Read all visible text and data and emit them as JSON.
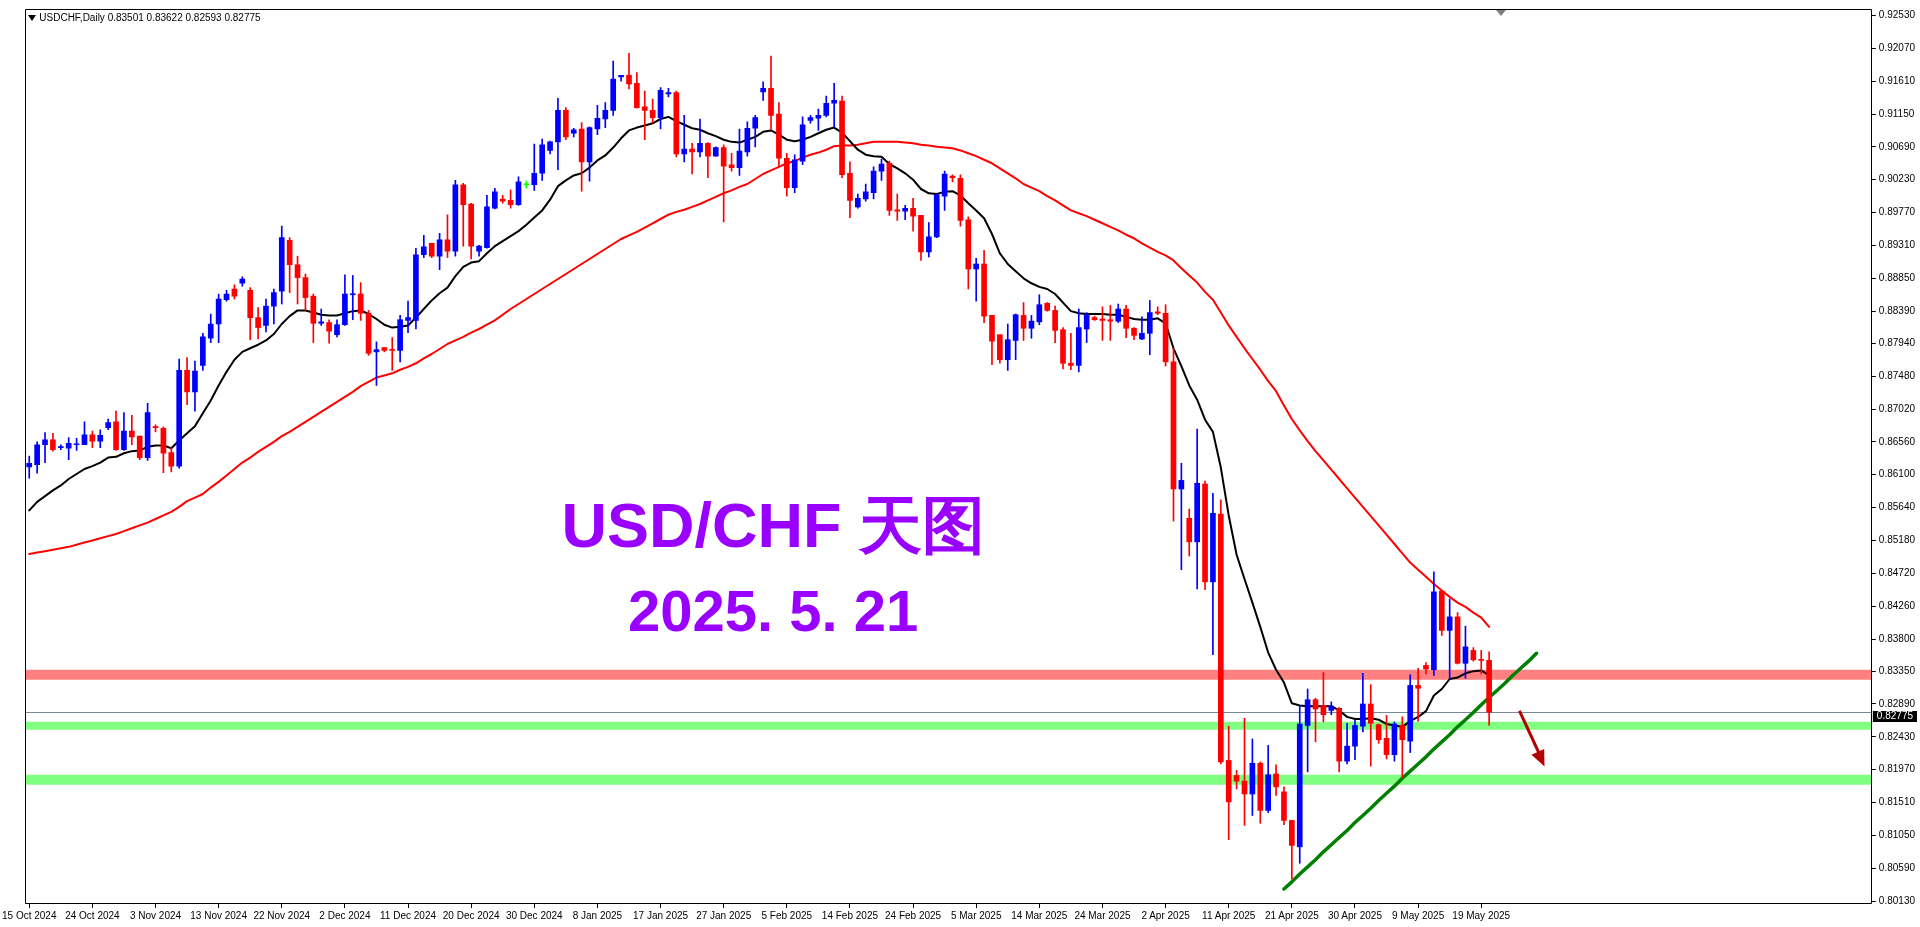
{
  "chart_data": {
    "type": "candlestick",
    "title": "USD/CHF 天图",
    "subtitle": "2025. 5. 21",
    "annotations": [
      "USDCHF,Daily 0.83501 0.83622 0.82593 0.82775"
    ],
    "categories": [
      "15 Oct 2024",
      null,
      null,
      null,
      null,
      null,
      null,
      null,
      "24 Oct 2024",
      null,
      null,
      null,
      null,
      null,
      null,
      null,
      "3 Nov 2024",
      null,
      null,
      null,
      null,
      null,
      null,
      null,
      "13 Nov 2024",
      null,
      null,
      null,
      null,
      null,
      null,
      null,
      "22 Nov 2024",
      null,
      null,
      null,
      null,
      null,
      null,
      null,
      "2 Dec 2024",
      null,
      null,
      null,
      null,
      null,
      null,
      null,
      "11 Dec 2024",
      null,
      null,
      null,
      null,
      null,
      null,
      null,
      "20 Dec 2024",
      null,
      null,
      null,
      null,
      null,
      null,
      null,
      "30 Dec 2024",
      null,
      null,
      null,
      null,
      null,
      null,
      null,
      "8 Jan 2025",
      null,
      null,
      null,
      null,
      null,
      null,
      null,
      "17 Jan 2025",
      null,
      null,
      null,
      null,
      null,
      null,
      null,
      "27 Jan 2025",
      null,
      null,
      null,
      null,
      null,
      null,
      null,
      "5 Feb 2025",
      null,
      null,
      null,
      null,
      null,
      null,
      null,
      "14 Feb 2025",
      null,
      null,
      null,
      null,
      null,
      null,
      null,
      "24 Feb 2025",
      null,
      null,
      null,
      null,
      null,
      null,
      null,
      "5 Mar 2025",
      null,
      null,
      null,
      null,
      null,
      null,
      null,
      "14 Mar 2025",
      null,
      null,
      null,
      null,
      null,
      null,
      null,
      "24 Mar 2025",
      null,
      null,
      null,
      null,
      null,
      null,
      null,
      "2 Apr 2025",
      null,
      null,
      null,
      null,
      null,
      null,
      null,
      "11 Apr 2025",
      null,
      null,
      null,
      null,
      null,
      null,
      null,
      "21 Apr 2025",
      null,
      null,
      null,
      null,
      null,
      null,
      null,
      "30 Apr 2025",
      null,
      null,
      null,
      null,
      null,
      null,
      null,
      "9 May 2025",
      null,
      null,
      null,
      null,
      null,
      null,
      null,
      "19 May 2025",
      null,
      null,
      null,
      null,
      null,
      null,
      null,
      null,
      null,
      null,
      null,
      null,
      null,
      null,
      null,
      null,
      null,
      null,
      null,
      null,
      null,
      null,
      null,
      null,
      null,
      null,
      null,
      null,
      null,
      null,
      null,
      null,
      null,
      null,
      null,
      null,
      null,
      null,
      null,
      null,
      null,
      null,
      null,
      null,
      null,
      null,
      null,
      null,
      null
    ],
    "ohlc": [
      [
        0.8621,
        0.8636,
        0.8605,
        0.8626
      ],
      [
        0.8624,
        0.8656,
        0.8612,
        0.8652
      ],
      [
        0.8652,
        0.8669,
        0.8627,
        0.8659
      ],
      [
        0.8659,
        0.8668,
        0.8643,
        0.8645
      ],
      [
        0.8648,
        0.8652,
        0.8645,
        0.8649
      ],
      [
        0.8647,
        0.8662,
        0.8631,
        0.8654
      ],
      [
        0.8652,
        0.8661,
        0.8644,
        0.8653
      ],
      [
        0.8652,
        0.8684,
        0.8652,
        0.8666
      ],
      [
        0.8666,
        0.8671,
        0.8648,
        0.8657
      ],
      [
        0.8657,
        0.8673,
        0.8648,
        0.8665
      ],
      [
        0.8676,
        0.8688,
        0.8673,
        0.8683
      ],
      [
        0.8684,
        0.8699,
        0.8644,
        0.8645
      ],
      [
        0.8645,
        0.8697,
        0.8644,
        0.8671
      ],
      [
        0.8671,
        0.8693,
        0.8652,
        0.8663
      ],
      [
        0.8664,
        0.8664,
        0.8631,
        0.8634
      ],
      [
        0.8634,
        0.871,
        0.863,
        0.8697
      ],
      [
        0.8677,
        0.868,
        0.867,
        0.8676
      ],
      [
        0.8675,
        0.8677,
        0.8613,
        0.864
      ],
      [
        0.8641,
        0.8648,
        0.8614,
        0.8622
      ],
      [
        0.8622,
        0.8772,
        0.8619,
        0.8756
      ],
      [
        0.8756,
        0.8774,
        0.8708,
        0.8726
      ],
      [
        0.8726,
        0.8769,
        0.8699,
        0.8755
      ],
      [
        0.8763,
        0.8808,
        0.8756,
        0.8803
      ],
      [
        0.8801,
        0.8835,
        0.8795,
        0.8821
      ],
      [
        0.8821,
        0.8863,
        0.8795,
        0.8856
      ],
      [
        0.8855,
        0.8868,
        0.8853,
        0.8863
      ],
      [
        0.887,
        0.8876,
        0.8856,
        0.886
      ],
      [
        0.8878,
        0.8887,
        0.8874,
        0.8884
      ],
      [
        0.8868,
        0.8872,
        0.8799,
        0.883
      ],
      [
        0.883,
        0.8844,
        0.88,
        0.8816
      ],
      [
        0.8819,
        0.8856,
        0.881,
        0.8846
      ],
      [
        0.8846,
        0.887,
        0.8821,
        0.8865
      ],
      [
        0.8867,
        0.8958,
        0.8849,
        0.8942
      ],
      [
        0.8938,
        0.8942,
        0.8865,
        0.8904
      ],
      [
        0.8904,
        0.8916,
        0.8849,
        0.8886
      ],
      [
        0.8886,
        0.8891,
        0.884,
        0.8858
      ],
      [
        0.886,
        0.8863,
        0.8795,
        0.8822
      ],
      [
        0.8822,
        0.8842,
        0.8819,
        0.8824
      ],
      [
        0.8823,
        0.8827,
        0.8794,
        0.8811
      ],
      [
        0.8806,
        0.8827,
        0.8803,
        0.882
      ],
      [
        0.882,
        0.889,
        0.8819,
        0.8863
      ],
      [
        0.8862,
        0.8889,
        0.8827,
        0.8863
      ],
      [
        0.8863,
        0.8879,
        0.8826,
        0.8836
      ],
      [
        0.8836,
        0.884,
        0.8777,
        0.878
      ],
      [
        0.8782,
        0.8796,
        0.8735,
        0.8785
      ],
      [
        0.8788,
        0.8788,
        0.8782,
        0.8784
      ],
      [
        0.8785,
        0.8802,
        0.8756,
        0.8784
      ],
      [
        0.8784,
        0.8833,
        0.8768,
        0.8827
      ],
      [
        0.8826,
        0.8853,
        0.8809,
        0.883
      ],
      [
        0.8826,
        0.8927,
        0.8814,
        0.8918
      ],
      [
        0.8918,
        0.8945,
        0.8914,
        0.8929
      ],
      [
        0.8934,
        0.8934,
        0.8914,
        0.8916
      ],
      [
        0.8916,
        0.8948,
        0.8897,
        0.8939
      ],
      [
        0.8939,
        0.8974,
        0.8914,
        0.8923
      ],
      [
        0.8923,
        0.9022,
        0.8916,
        0.9016
      ],
      [
        0.9016,
        0.9018,
        0.893,
        0.8988
      ],
      [
        0.8989,
        0.899,
        0.8912,
        0.893
      ],
      [
        0.8923,
        0.8931,
        0.8916,
        0.893
      ],
      [
        0.8928,
        0.9001,
        0.8927,
        0.8985
      ],
      [
        0.8983,
        0.9011,
        0.8982,
        0.9006
      ],
      [
        0.8996,
        0.9001,
        0.899,
        0.8993
      ],
      [
        0.8994,
        0.9009,
        0.8983,
        0.8988
      ],
      [
        0.8988,
        0.9027,
        0.8987,
        0.902
      ],
      [
        0.9016,
        0.9021,
        0.9011,
        0.9016
      ],
      [
        0.9016,
        0.9073,
        0.9008,
        0.9032
      ],
      [
        0.9032,
        0.908,
        0.9022,
        0.9072
      ],
      [
        0.9064,
        0.9077,
        0.9059,
        0.9076
      ],
      [
        0.9076,
        0.9137,
        0.9037,
        0.912
      ],
      [
        0.912,
        0.9124,
        0.9079,
        0.9083
      ],
      [
        0.9088,
        0.9095,
        0.9083,
        0.9093
      ],
      [
        0.9094,
        0.9103,
        0.9007,
        0.9048
      ],
      [
        0.9048,
        0.9097,
        0.9021,
        0.9096
      ],
      [
        0.9094,
        0.9127,
        0.9086,
        0.9109
      ],
      [
        0.9108,
        0.9131,
        0.9096,
        0.912
      ],
      [
        0.912,
        0.9189,
        0.9113,
        0.9164
      ],
      [
        0.9167,
        0.9169,
        0.9161,
        0.9169
      ],
      [
        0.9169,
        0.92,
        0.915,
        0.9157
      ],
      [
        0.9158,
        0.9173,
        0.9123,
        0.9124
      ],
      [
        0.9125,
        0.9147,
        0.9079,
        0.912
      ],
      [
        0.912,
        0.9136,
        0.9102,
        0.911
      ],
      [
        0.911,
        0.9152,
        0.9094,
        0.9148
      ],
      [
        0.9143,
        0.9151,
        0.9139,
        0.9145
      ],
      [
        0.9145,
        0.9147,
        0.9055,
        0.9059
      ],
      [
        0.9059,
        0.9113,
        0.9048,
        0.9066
      ],
      [
        0.9066,
        0.9074,
        0.9031,
        0.9062
      ],
      [
        0.9062,
        0.9108,
        0.9055,
        0.9074
      ],
      [
        0.9074,
        0.9075,
        0.9026,
        0.9056
      ],
      [
        0.9056,
        0.9069,
        0.9056,
        0.9068
      ],
      [
        0.9068,
        0.9072,
        0.8964,
        0.9042
      ],
      [
        0.9044,
        0.906,
        0.9035,
        0.904
      ],
      [
        0.904,
        0.9094,
        0.9029,
        0.9063
      ],
      [
        0.9062,
        0.9104,
        0.9056,
        0.9095
      ],
      [
        0.9095,
        0.9113,
        0.9069,
        0.911
      ],
      [
        0.9146,
        0.916,
        0.9134,
        0.9151
      ],
      [
        0.9151,
        0.9196,
        0.9093,
        0.9113
      ],
      [
        0.9115,
        0.9131,
        0.9042,
        0.9053
      ],
      [
        0.9053,
        0.906,
        0.9,
        0.9012
      ],
      [
        0.9012,
        0.9058,
        0.9005,
        0.9051
      ],
      [
        0.9049,
        0.9111,
        0.9044,
        0.91
      ],
      [
        0.9106,
        0.9113,
        0.9102,
        0.911
      ],
      [
        0.9109,
        0.9122,
        0.9092,
        0.9113
      ],
      [
        0.9113,
        0.914,
        0.9111,
        0.913
      ],
      [
        0.913,
        0.9158,
        0.9097,
        0.9134
      ],
      [
        0.9133,
        0.914,
        0.9026,
        0.903
      ],
      [
        0.9032,
        0.9048,
        0.897,
        0.8994
      ],
      [
        0.8985,
        0.9003,
        0.8983,
        0.8997
      ],
      [
        0.8996,
        0.9017,
        0.8993,
        0.9006
      ],
      [
        0.9005,
        0.9041,
        0.8996,
        0.9035
      ],
      [
        0.9035,
        0.9052,
        0.9022,
        0.9045
      ],
      [
        0.9046,
        0.9049,
        0.8973,
        0.898
      ],
      [
        0.8981,
        0.9003,
        0.8966,
        0.8979
      ],
      [
        0.8979,
        0.8987,
        0.8967,
        0.8983
      ],
      [
        0.8983,
        0.8997,
        0.8951,
        0.8972
      ],
      [
        0.8973,
        0.8973,
        0.891,
        0.8922
      ],
      [
        0.8922,
        0.8963,
        0.8915,
        0.8943
      ],
      [
        0.8943,
        0.9003,
        0.8942,
        0.9002
      ],
      [
        0.9,
        0.9035,
        0.898,
        0.9031
      ],
      [
        0.9028,
        0.903,
        0.902,
        0.9026
      ],
      [
        0.9025,
        0.903,
        0.8958,
        0.8966
      ],
      [
        0.8967,
        0.8971,
        0.887,
        0.8898
      ],
      [
        0.8898,
        0.8913,
        0.8853,
        0.8905
      ],
      [
        0.8905,
        0.8924,
        0.8823,
        0.8832
      ],
      [
        0.8833,
        0.8833,
        0.8764,
        0.8797
      ],
      [
        0.8806,
        0.8806,
        0.8766,
        0.8771
      ],
      [
        0.8771,
        0.8821,
        0.8756,
        0.8799
      ],
      [
        0.8798,
        0.8835,
        0.8771,
        0.8834
      ],
      [
        0.8833,
        0.8851,
        0.8798,
        0.8815
      ],
      [
        0.8815,
        0.8833,
        0.8801,
        0.8825
      ],
      [
        0.8824,
        0.8862,
        0.882,
        0.8848
      ],
      [
        0.885,
        0.8851,
        0.8839,
        0.884
      ],
      [
        0.884,
        0.8846,
        0.8795,
        0.8812
      ],
      [
        0.8813,
        0.8816,
        0.8758,
        0.8766
      ],
      [
        0.8766,
        0.8808,
        0.8757,
        0.8763
      ],
      [
        0.8763,
        0.8842,
        0.8754,
        0.8816
      ],
      [
        0.8814,
        0.8837,
        0.8795,
        0.8834
      ],
      [
        0.883,
        0.8832,
        0.8826,
        0.8827
      ],
      [
        0.8828,
        0.8845,
        0.8798,
        0.8826
      ],
      [
        0.8827,
        0.8847,
        0.8798,
        0.8825
      ],
      [
        0.8825,
        0.8849,
        0.8823,
        0.8842
      ],
      [
        0.8842,
        0.8847,
        0.8802,
        0.8815
      ],
      [
        0.8815,
        0.8816,
        0.8799,
        0.8805
      ],
      [
        0.88,
        0.8831,
        0.8799,
        0.8808
      ],
      [
        0.8808,
        0.8854,
        0.8778,
        0.8837
      ],
      [
        0.8838,
        0.8845,
        0.8834,
        0.8836
      ],
      [
        0.8836,
        0.8848,
        0.8762,
        0.8768
      ],
      [
        0.8768,
        0.8787,
        0.8545,
        0.859
      ],
      [
        0.859,
        0.8626,
        0.8477,
        0.8602
      ],
      [
        0.8549,
        0.8562,
        0.8496,
        0.8516
      ],
      [
        0.8516,
        0.8674,
        0.845,
        0.8598
      ],
      [
        0.8597,
        0.8601,
        0.8449,
        0.846
      ],
      [
        0.846,
        0.8584,
        0.8358,
        0.8556
      ],
      [
        0.8555,
        0.8575,
        0.8205,
        0.8208
      ],
      [
        0.821,
        0.8258,
        0.8099,
        0.8152
      ],
      [
        0.8189,
        0.8196,
        0.817,
        0.8181
      ],
      [
        0.8181,
        0.8269,
        0.8119,
        0.8163
      ],
      [
        0.8163,
        0.824,
        0.8133,
        0.8206
      ],
      [
        0.8206,
        0.8208,
        0.8122,
        0.814
      ],
      [
        0.814,
        0.8231,
        0.8137,
        0.819
      ],
      [
        0.8191,
        0.8204,
        0.8161,
        0.8173
      ],
      [
        0.8166,
        0.8173,
        0.812,
        0.8126
      ],
      [
        0.8126,
        0.8126,
        0.8044,
        0.8091
      ],
      [
        0.8089,
        0.8287,
        0.8066,
        0.8261
      ],
      [
        0.8259,
        0.831,
        0.8194,
        0.8295
      ],
      [
        0.8295,
        0.8297,
        0.8236,
        0.8282
      ],
      [
        0.8287,
        0.8333,
        0.8264,
        0.8274
      ],
      [
        0.828,
        0.8292,
        0.8274,
        0.8286
      ],
      [
        0.8283,
        0.8284,
        0.8194,
        0.8209
      ],
      [
        0.8209,
        0.8262,
        0.8205,
        0.823
      ],
      [
        0.823,
        0.8266,
        0.8211,
        0.8259
      ],
      [
        0.8258,
        0.8332,
        0.825,
        0.8289
      ],
      [
        0.8289,
        0.8316,
        0.8202,
        0.8262
      ],
      [
        0.826,
        0.8261,
        0.8234,
        0.8239
      ],
      [
        0.8241,
        0.8273,
        0.8212,
        0.8218
      ],
      [
        0.8218,
        0.8264,
        0.8209,
        0.8261
      ],
      [
        0.8259,
        0.8271,
        0.8186,
        0.8239
      ],
      [
        0.8237,
        0.833,
        0.8221,
        0.8315
      ],
      [
        0.8315,
        0.8339,
        0.8265,
        0.8311
      ],
      [
        0.8343,
        0.8347,
        0.8331,
        0.8338
      ],
      [
        0.8337,
        0.8474,
        0.8329,
        0.8446
      ],
      [
        0.8447,
        0.8448,
        0.8385,
        0.8392
      ],
      [
        0.8392,
        0.8436,
        0.8325,
        0.8411
      ],
      [
        0.8411,
        0.8417,
        0.8345,
        0.8346
      ],
      [
        0.8346,
        0.8398,
        0.8325,
        0.8369
      ],
      [
        0.8364,
        0.8368,
        0.8349,
        0.8351
      ],
      [
        0.8351,
        0.8364,
        0.8331,
        0.835
      ],
      [
        0.83501,
        0.83622,
        0.82593,
        0.82775
      ],
      null,
      null,
      null,
      null,
      null,
      null,
      null,
      null,
      null,
      null,
      null,
      null,
      null,
      null,
      null,
      null,
      null,
      null,
      null,
      null,
      null,
      null,
      null,
      null,
      null,
      null,
      null,
      null,
      null,
      null,
      null,
      null,
      null,
      null,
      null,
      null,
      null,
      null,
      null,
      null,
      null,
      null,
      null,
      null,
      null,
      null,
      null,
      null
    ],
    "colors": [
      "#0000ff",
      "#0000ff",
      "#0000ff",
      "#ff0000",
      "#0000ff",
      "#0000ff",
      "#0000ff",
      "#0000ff",
      "#ff0000",
      "#0000ff",
      "#0000ff",
      "#ff0000",
      "#0000ff",
      "#ff0000",
      "#ff0000",
      "#0000ff",
      "#ff0000",
      "#ff0000",
      "#ff0000",
      "#0000ff",
      "#ff0000",
      "#0000ff",
      "#0000ff",
      "#0000ff",
      "#0000ff",
      "#0000ff",
      "#ff0000",
      "#0000ff",
      "#ff0000",
      "#ff0000",
      "#0000ff",
      "#0000ff",
      "#0000ff",
      "#ff0000",
      "#ff0000",
      "#ff0000",
      "#ff0000",
      "#0000ff",
      "#ff0000",
      "#0000ff",
      "#0000ff",
      "#0000ff",
      "#ff0000",
      "#ff0000",
      "#0000ff",
      "#ff0000",
      "#ff0000",
      "#0000ff",
      "#0000ff",
      "#0000ff",
      "#0000ff",
      "#ff0000",
      "#0000ff",
      "#ff0000",
      "#0000ff",
      "#ff0000",
      "#ff0000",
      "#0000ff",
      "#0000ff",
      "#0000ff",
      "#ff0000",
      "#ff0000",
      "#0000ff",
      "#00ff00",
      "#0000ff",
      "#0000ff",
      "#0000ff",
      "#0000ff",
      "#ff0000",
      "#0000ff",
      "#ff0000",
      "#0000ff",
      "#0000ff",
      "#0000ff",
      "#0000ff",
      "#0000ff",
      "#ff0000",
      "#ff0000",
      "#ff0000",
      "#ff0000",
      "#0000ff",
      "#0000ff",
      "#ff0000",
      "#0000ff",
      "#ff0000",
      "#0000ff",
      "#ff0000",
      "#0000ff",
      "#ff0000",
      "#ff0000",
      "#0000ff",
      "#0000ff",
      "#0000ff",
      "#0000ff",
      "#ff0000",
      "#ff0000",
      "#ff0000",
      "#0000ff",
      "#0000ff",
      "#0000ff",
      "#0000ff",
      "#0000ff",
      "#0000ff",
      "#ff0000",
      "#ff0000",
      "#0000ff",
      "#0000ff",
      "#0000ff",
      "#0000ff",
      "#ff0000",
      "#ff0000",
      "#0000ff",
      "#ff0000",
      "#ff0000",
      "#0000ff",
      "#0000ff",
      "#0000ff",
      "#ff0000",
      "#ff0000",
      "#ff0000",
      "#0000ff",
      "#ff0000",
      "#ff0000",
      "#ff0000",
      "#0000ff",
      "#0000ff",
      "#ff0000",
      "#0000ff",
      "#0000ff",
      "#ff0000",
      "#ff0000",
      "#ff0000",
      "#ff0000",
      "#0000ff",
      "#0000ff",
      "#ff0000",
      "#ff0000",
      "#ff0000",
      "#0000ff",
      "#ff0000",
      "#ff0000",
      "#0000ff",
      "#0000ff",
      "#ff0000",
      "#ff0000",
      "#ff0000",
      "#0000ff",
      "#ff0000",
      "#0000ff",
      "#ff0000",
      "#0000ff",
      "#ff0000",
      "#ff0000",
      "#ff0000",
      "#ff0000",
      "#0000ff",
      "#ff0000",
      "#0000ff",
      "#ff0000",
      "#ff0000",
      "#ff0000",
      "#0000ff",
      "#0000ff",
      "#ff0000",
      "#ff0000",
      "#0000ff",
      "#ff0000",
      "#0000ff",
      "#0000ff",
      "#0000ff",
      "#ff0000",
      "#ff0000",
      "#ff0000",
      "#0000ff",
      "#ff0000",
      "#0000ff",
      "#ff0000",
      "#ff0000",
      "#0000ff",
      "#ff0000",
      "#0000ff",
      "#ff0000",
      "#0000ff",
      "#ff0000",
      "#ff0000",
      "#ff0000",
      null,
      null,
      null,
      null,
      null,
      null,
      null,
      null,
      null,
      null,
      null,
      null,
      null,
      null,
      null,
      null,
      null,
      null,
      null,
      null,
      null,
      null,
      null,
      null,
      null,
      null,
      null,
      null,
      null,
      null,
      null,
      null,
      null,
      null,
      null,
      null,
      null,
      null,
      null,
      null,
      null,
      null,
      null,
      null,
      null,
      null,
      null,
      null
    ],
    "series": [
      {
        "type": "line",
        "color": "#000000",
        "values": [
          0.856,
          0.8572,
          0.858,
          0.8588,
          0.8595,
          0.8604,
          0.8611,
          0.8618,
          0.8622,
          0.8627,
          0.8634,
          0.8635,
          0.864,
          0.8643,
          0.8644,
          0.8649,
          0.8651,
          0.8651,
          0.8647,
          0.8658,
          0.8668,
          0.8678,
          0.8696,
          0.8714,
          0.8735,
          0.8754,
          0.8771,
          0.8782,
          0.8787,
          0.8792,
          0.8798,
          0.8807,
          0.8821,
          0.8832,
          0.884,
          0.884,
          0.8837,
          0.8834,
          0.8833,
          0.8833,
          0.8836,
          0.8839,
          0.884,
          0.8835,
          0.8828,
          0.882,
          0.8816,
          0.8817,
          0.8819,
          0.883,
          0.8842,
          0.8854,
          0.8864,
          0.8872,
          0.8888,
          0.8901,
          0.8907,
          0.8909,
          0.892,
          0.893,
          0.8937,
          0.8944,
          0.8951,
          0.896,
          0.897,
          0.898,
          0.8995,
          0.9014,
          0.9022,
          0.9029,
          0.9032,
          0.904,
          0.905,
          0.9057,
          0.9068,
          0.9081,
          0.9092,
          0.9096,
          0.9099,
          0.9102,
          0.9108,
          0.9111,
          0.9105,
          0.91,
          0.9095,
          0.9093,
          0.9088,
          0.9084,
          0.9079,
          0.9076,
          0.9075,
          0.9079,
          0.9083,
          0.909,
          0.9092,
          0.9086,
          0.9079,
          0.9077,
          0.9079,
          0.9083,
          0.9088,
          0.9093,
          0.9096,
          0.9089,
          0.9077,
          0.9065,
          0.9058,
          0.9056,
          0.9055,
          0.9045,
          0.9039,
          0.9032,
          0.9023,
          0.901,
          0.9004,
          0.9003,
          0.9006,
          0.9007,
          0.9001,
          0.899,
          0.898,
          0.8969,
          0.8947,
          0.892,
          0.8905,
          0.8895,
          0.8885,
          0.8878,
          0.8873,
          0.887,
          0.8863,
          0.8851,
          0.8839,
          0.8836,
          0.8835,
          0.8835,
          0.8835,
          0.8834,
          0.8834,
          0.8831,
          0.8828,
          0.8827,
          0.8827,
          0.8829,
          0.8822,
          0.8787,
          0.8762,
          0.8735,
          0.8715,
          0.8687,
          0.867,
          0.862,
          0.8553,
          0.8498,
          0.8464,
          0.8431,
          0.8397,
          0.8361,
          0.8337,
          0.8319,
          0.829,
          0.8287,
          0.8286,
          0.8286,
          0.8286,
          0.8286,
          0.828,
          0.8271,
          0.8268,
          0.8268,
          0.8269,
          0.8267,
          0.8261,
          0.8259,
          0.8257,
          0.8265,
          0.8271,
          0.8279,
          0.8301,
          0.831,
          0.8324,
          0.8326,
          0.8332,
          0.8335,
          0.8336,
          0.8329,
          null,
          null,
          null,
          null,
          null,
          null,
          null,
          null,
          null,
          null,
          null,
          null,
          null,
          null,
          null,
          null,
          null,
          null,
          null,
          null,
          null,
          null,
          null,
          null,
          null,
          null,
          null,
          null,
          null,
          null,
          null,
          null,
          null,
          null,
          null,
          null,
          null,
          null,
          null,
          null,
          null,
          null,
          null,
          null,
          null,
          null,
          null,
          null
        ]
      },
      {
        "type": "line",
        "color": "#ff0000",
        "values": [
          0.8499,
          0.8501,
          0.8503,
          0.8505,
          0.8507,
          0.8509,
          0.8512,
          0.8515,
          0.8518,
          0.8521,
          0.8524,
          0.8527,
          0.8531,
          0.8535,
          0.8539,
          0.8543,
          0.8548,
          0.8553,
          0.8558,
          0.8565,
          0.8573,
          0.8578,
          0.8583,
          0.8592,
          0.86,
          0.8609,
          0.8618,
          0.8627,
          0.8634,
          0.8642,
          0.8649,
          0.8656,
          0.8664,
          0.867,
          0.8677,
          0.8684,
          0.8691,
          0.8698,
          0.8705,
          0.8712,
          0.8719,
          0.8726,
          0.8734,
          0.874,
          0.8746,
          0.8749,
          0.8752,
          0.8757,
          0.8761,
          0.8766,
          0.8773,
          0.8779,
          0.8786,
          0.8793,
          0.8798,
          0.8803,
          0.8809,
          0.8814,
          0.882,
          0.8826,
          0.8834,
          0.8842,
          0.8849,
          0.8856,
          0.8863,
          0.887,
          0.8877,
          0.8884,
          0.8891,
          0.8898,
          0.8905,
          0.8912,
          0.8919,
          0.8926,
          0.8933,
          0.894,
          0.8945,
          0.895,
          0.8956,
          0.8962,
          0.8968,
          0.8974,
          0.8978,
          0.8981,
          0.8985,
          0.8989,
          0.8994,
          0.8999,
          0.9004,
          0.9008,
          0.9013,
          0.9017,
          0.9024,
          0.9031,
          0.9036,
          0.9041,
          0.9046,
          0.9049,
          0.9054,
          0.9058,
          0.9061,
          0.9065,
          0.907,
          0.9071,
          0.9071,
          0.9072,
          0.9074,
          0.9076,
          0.9076,
          0.9076,
          0.9076,
          0.9075,
          0.9074,
          0.9072,
          0.9071,
          0.9069,
          0.9068,
          0.9067,
          0.9064,
          0.906,
          0.9056,
          0.9051,
          0.9046,
          0.9039,
          0.9032,
          0.9025,
          0.9017,
          0.9012,
          0.9007,
          0.9,
          0.8994,
          0.8987,
          0.898,
          0.8976,
          0.8972,
          0.8967,
          0.8962,
          0.8957,
          0.8952,
          0.8946,
          0.8941,
          0.8934,
          0.8928,
          0.8922,
          0.8917,
          0.891,
          0.8899,
          0.8889,
          0.8879,
          0.8866,
          0.8855,
          0.8837,
          0.8819,
          0.8803,
          0.8787,
          0.8772,
          0.8757,
          0.8741,
          0.8727,
          0.8707,
          0.8688,
          0.8672,
          0.8657,
          0.8643,
          0.863,
          0.8617,
          0.8604,
          0.8591,
          0.8578,
          0.8565,
          0.8552,
          0.8539,
          0.8526,
          0.8513,
          0.85,
          0.8487,
          0.8477,
          0.8467,
          0.8457,
          0.8448,
          0.8439,
          0.8431,
          0.8425,
          0.8417,
          0.841,
          0.8397,
          null,
          null,
          null,
          null,
          null,
          null,
          null,
          null,
          null,
          null,
          null,
          null,
          null,
          null,
          null,
          null,
          null,
          null,
          null,
          null,
          null,
          null,
          null,
          null,
          null,
          null,
          null,
          null,
          null,
          null,
          null,
          null,
          null,
          null,
          null,
          null,
          null,
          null,
          null,
          null,
          null,
          null,
          null,
          null,
          null,
          null,
          null,
          null
        ]
      },
      {
        "type": "line",
        "color": "#008000",
        "values": [
          null,
          null,
          null,
          null,
          null,
          null,
          null,
          null,
          null,
          null,
          null,
          null,
          null,
          null,
          null,
          null,
          null,
          null,
          null,
          null,
          null,
          null,
          null,
          null,
          null,
          null,
          null,
          null,
          null,
          null,
          null,
          null,
          null,
          null,
          null,
          null,
          null,
          null,
          null,
          null,
          null,
          null,
          null,
          null,
          null,
          null,
          null,
          null,
          null,
          null,
          null,
          null,
          null,
          null,
          null,
          null,
          null,
          null,
          null,
          null,
          null,
          null,
          null,
          null,
          null,
          null,
          null,
          null,
          null,
          null,
          null,
          null,
          null,
          null,
          null,
          null,
          null,
          null,
          null,
          null,
          null,
          null,
          null,
          null,
          null,
          null,
          null,
          null,
          null,
          null,
          null,
          null,
          null,
          null,
          null,
          null,
          null,
          null,
          null,
          null,
          null,
          null,
          null,
          null,
          null,
          null,
          null,
          null,
          null,
          null,
          null,
          null,
          null,
          null,
          null,
          null,
          null,
          null,
          null,
          null,
          null,
          null,
          null,
          null,
          null,
          null,
          null,
          null,
          null,
          null,
          null,
          null,
          null,
          null,
          null,
          null,
          null,
          null,
          null,
          null,
          null,
          null,
          null,
          null,
          null,
          null,
          null,
          null,
          null,
          null,
          null,
          null,
          null,
          null,
          null,
          null,
          null,
          null,
          null,
          0.803,
          0.804,
          0.8051,
          0.8061,
          0.8071,
          0.8082,
          0.8092,
          0.8102,
          0.8112,
          0.8123,
          0.8133,
          0.8143,
          0.8154,
          0.8164,
          0.8174,
          0.8185,
          0.8195,
          0.8205,
          0.8215,
          0.8226,
          0.8236,
          0.8246,
          0.8257,
          0.8267,
          0.8277,
          0.8288,
          0.8298,
          0.8308,
          0.8318,
          0.8329,
          0.8339,
          0.8349,
          0.836,
          null,
          null,
          null,
          null,
          null,
          null,
          null,
          null,
          null,
          null,
          null,
          null,
          null,
          null,
          null,
          null,
          null,
          null,
          null,
          null,
          null,
          null,
          null,
          null,
          null,
          null,
          null,
          null,
          null,
          null,
          null,
          null,
          null,
          null,
          null,
          null,
          null,
          null,
          null,
          null,
          null,
          null
        ]
      }
    ],
    "ylim": [
      0.8009,
      0.9262
    ],
    "yticks": [
      {
        "value": 0.9253,
        "label": "0.92530"
      },
      {
        "value": 0.9207,
        "label": "0.92070"
      },
      {
        "value": 0.9161,
        "label": "0.91610"
      },
      {
        "value": 0.9115,
        "label": "0.91150"
      },
      {
        "value": 0.9069,
        "label": "0.90690"
      },
      {
        "value": 0.9023,
        "label": "0.90230"
      },
      {
        "value": 0.8977,
        "label": "0.89770"
      },
      {
        "value": 0.8931,
        "label": "0.89310"
      },
      {
        "value": 0.8885,
        "label": "0.88850"
      },
      {
        "value": 0.8839,
        "label": "0.88390"
      },
      {
        "value": 0.8794,
        "label": "0.87940"
      },
      {
        "value": 0.8748,
        "label": "0.87480"
      },
      {
        "value": 0.8702,
        "label": "0.87020"
      },
      {
        "value": 0.8656,
        "label": "0.86560"
      },
      {
        "value": 0.861,
        "label": "0.86100"
      },
      {
        "value": 0.8564,
        "label": "0.85640"
      },
      {
        "value": 0.8518,
        "label": "0.85180"
      },
      {
        "value": 0.8472,
        "label": "0.84720"
      },
      {
        "value": 0.8426,
        "label": "0.84260"
      },
      {
        "value": 0.838,
        "label": "0.83800"
      },
      {
        "value": 0.8335,
        "label": "0.83350"
      },
      {
        "value": 0.8289,
        "label": "0.82890"
      },
      {
        "value": 0.8243,
        "label": "0.82430"
      },
      {
        "value": 0.8197,
        "label": "0.81970"
      },
      {
        "value": 0.8151,
        "label": "0.81510"
      },
      {
        "value": 0.8105,
        "label": "0.81050"
      },
      {
        "value": 0.8059,
        "label": "0.80590"
      },
      {
        "value": 0.8013,
        "label": "0.80130"
      }
    ],
    "ref_lines": [
      {
        "axis": "y",
        "value": 0.82775,
        "label": "0.82775",
        "color": "#778899"
      }
    ],
    "bands": [
      {
        "axis": "y",
        "from": 0.8323,
        "to": 0.8337,
        "color": "#ff8080"
      },
      {
        "axis": "y",
        "from": 0.8253,
        "to": 0.8264,
        "color": "#80ff80"
      },
      {
        "axis": "y",
        "from": 0.8176,
        "to": 0.819,
        "color": "#80ff80"
      }
    ]
  }
}
